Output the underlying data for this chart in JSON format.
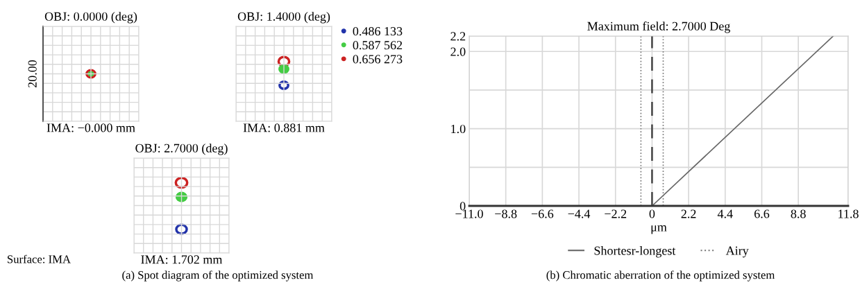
{
  "chart_data": [
    {
      "type": "other",
      "title": "OBJ: 0.0000 (deg)",
      "xlabel": "IMA: −0.000 mm",
      "ylabel": "20.00",
      "annotations": [
        "(a) Spot diagram of the optimized system"
      ]
    },
    {
      "type": "other",
      "title": "OBJ: 1.4000 (deg)",
      "xlabel": "IMA: 0.881 mm",
      "legend": "right",
      "series": [
        {
          "name": "0.486 133",
          "color": "#2233aa"
        },
        {
          "name": "0.587 562",
          "color": "#44cc44"
        },
        {
          "name": "0.656 273",
          "color": "#cc2222"
        }
      ]
    },
    {
      "type": "other",
      "title": "OBJ: 2.7000 (deg)",
      "xlabel": "IMA: 1.702 mm",
      "annotations": [
        "Surface: IMA"
      ]
    },
    {
      "type": "line",
      "title": "Maximum field: 2.7000 Deg",
      "xlabel": "μm",
      "xlim": [
        -11.0,
        11.8
      ],
      "xticks": [
        {
          "value": -11.0,
          "label": "−11.0"
        },
        {
          "value": -8.8,
          "label": "−8.8"
        },
        {
          "value": -6.6,
          "label": "−6.6"
        },
        {
          "value": -4.4,
          "label": "−4.4"
        },
        {
          "value": -2.2,
          "label": "−2.2"
        },
        0,
        2.2,
        4.4,
        6.6,
        8.8,
        11.8
      ],
      "ylim": [
        0,
        2.2
      ],
      "yticks": [
        0,
        {
          "value": 0.5,
          "label": null
        },
        {
          "value": 1.0,
          "label": "1.0"
        },
        {
          "value": 1.5,
          "label": null
        },
        {
          "value": 2.0,
          "label": "2.0"
        },
        2.2
      ],
      "grid": true,
      "legend": "bottom",
      "ref_lines": [
        {
          "axis": "x",
          "value": 0,
          "color": "#444444",
          "line_style": "dashed"
        }
      ],
      "series": [
        {
          "name": "Shortesr-longest",
          "color": "#666666",
          "x": [
            0,
            10.9
          ],
          "values": [
            0,
            2.2
          ],
          "line_style": "solid"
        },
        {
          "name": "Airy",
          "color": "#777777",
          "x": [
            -0.67,
            -0.67,
            0,
            0.67,
            0.67
          ],
          "values": [
            0,
            2.2,
            null,
            2.2,
            0
          ],
          "line_style": "dotted"
        }
      ],
      "annotations": [
        "(b) Chromatic aberration of the optimized system"
      ]
    }
  ]
}
